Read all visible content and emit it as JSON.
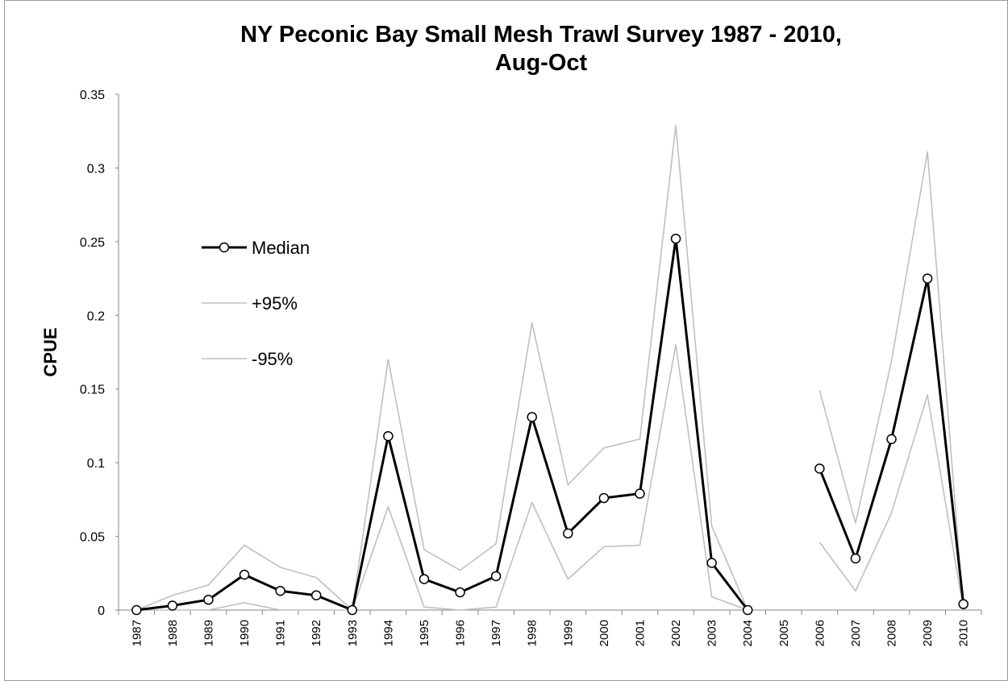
{
  "chart_data": {
    "type": "line",
    "title": [
      "NY Peconic Bay Small Mesh Trawl Survey 1987 - 2010,",
      "Aug-Oct"
    ],
    "y_label": "CPUE",
    "categories": [
      "1987",
      "1988",
      "1989",
      "1990",
      "1991",
      "1992",
      "1993",
      "1994",
      "1995",
      "1996",
      "1997",
      "1998",
      "1999",
      "2000",
      "2001",
      "2002",
      "2003",
      "2004",
      "2005",
      "2006",
      "2007",
      "2008",
      "2009",
      "2010"
    ],
    "series": [
      {
        "name": "Median",
        "color": "#000000",
        "marker": "circle",
        "values": [
          0.0,
          0.003,
          0.007,
          0.024,
          0.013,
          0.01,
          0.0,
          0.118,
          0.021,
          0.012,
          0.023,
          0.131,
          0.052,
          0.076,
          0.079,
          0.252,
          0.032,
          0.0,
          null,
          0.096,
          0.035,
          0.116,
          0.225,
          0.004
        ]
      },
      {
        "name": "+95%",
        "color": "#bfbfbf",
        "values": [
          0.0,
          0.01,
          0.017,
          0.044,
          0.029,
          0.022,
          0.0,
          0.17,
          0.041,
          0.027,
          0.045,
          0.195,
          0.085,
          0.11,
          0.116,
          0.329,
          0.057,
          0.0,
          null,
          0.149,
          0.059,
          0.169,
          0.311,
          0.0
        ]
      },
      {
        "name": "-95%",
        "color": "#bfbfbf",
        "values": [
          0.0,
          0.0,
          0.0,
          0.005,
          0.0,
          0.0,
          0.0,
          0.07,
          0.002,
          0.0,
          0.002,
          0.073,
          0.021,
          0.043,
          0.044,
          0.18,
          0.009,
          0.0,
          null,
          0.046,
          0.013,
          0.066,
          0.146,
          0.0
        ]
      }
    ],
    "ylim": [
      0,
      0.35
    ],
    "yticks": [
      0,
      0.05,
      0.1,
      0.15,
      0.2,
      0.25,
      0.3,
      0.35
    ],
    "grid": false,
    "legend": "upper left"
  }
}
